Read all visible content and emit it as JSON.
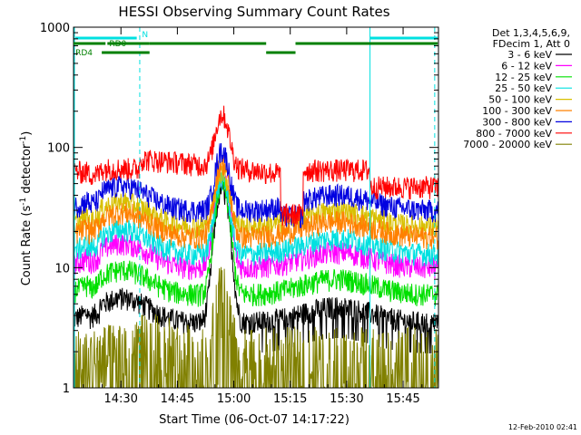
{
  "chart_data": {
    "type": "line",
    "title": "HESSI Observing Summary Count Rates",
    "xlabel": "Start Time (06-Oct-07 14:17:22)",
    "ylabel_main": "Count Rate (s",
    "ylabel_sup1": "-1",
    "ylabel_mid": " detector",
    "ylabel_sup2": "-1",
    "ylabel_end": ")",
    "yscale": "log",
    "ylim": [
      1,
      1000
    ],
    "xlim_min": [
      0,
      97
    ],
    "x_unit": "minutes after 14:17:22",
    "xticks": [
      {
        "label": "14:30",
        "t": 12.6
      },
      {
        "label": "14:45",
        "t": 27.6
      },
      {
        "label": "15:00",
        "t": 42.6
      },
      {
        "label": "15:15",
        "t": 57.6
      },
      {
        "label": "15:30",
        "t": 72.6
      },
      {
        "label": "15:45",
        "t": 87.6
      }
    ],
    "yticks": [
      {
        "label": "1",
        "v": 1
      },
      {
        "label": "10",
        "v": 10
      },
      {
        "label": "100",
        "v": 100
      },
      {
        "label": "1000",
        "v": 1000
      }
    ],
    "legend_header": [
      "Det 1,3,4,5,6,9,",
      "FDecim 1, Att 0"
    ],
    "legend_position": "right",
    "timestamp": "12-Feb-2010 02:41",
    "flags": {
      "N_label": "N",
      "RD0_label": "RD0",
      "RD4_label": "RD4"
    },
    "night_markers_t": [
      17.6,
      96.0
    ],
    "saa_markers_t": [
      78.8
    ],
    "series": [
      {
        "name": "3 - 6 keV",
        "color": "#000000",
        "base": 3.5,
        "peak": 45
      },
      {
        "name": "6 - 12 keV",
        "color": "#ff00ff",
        "base": 10,
        "peak": 60
      },
      {
        "name": "12 - 25 keV",
        "color": "#00e000",
        "base": 6,
        "peak": 50
      },
      {
        "name": "25 - 50 keV",
        "color": "#00e0e0",
        "base": 13,
        "peak": 55
      },
      {
        "name": "50 - 100 keV",
        "color": "#d8c000",
        "base": 22,
        "peak": 65
      },
      {
        "name": "100 - 300 keV",
        "color": "#ff8000",
        "base": 18,
        "peak": 75
      },
      {
        "name": "300 - 800 keV",
        "color": "#0000e0",
        "base": 30,
        "peak": 95
      },
      {
        "name": "800 - 7000 keV",
        "color": "#ff0000",
        "base": 45,
        "peak": 165
      },
      {
        "name": "7000 - 20000 keV",
        "color": "#808000",
        "base": 1.7,
        "peak": 6
      }
    ]
  }
}
